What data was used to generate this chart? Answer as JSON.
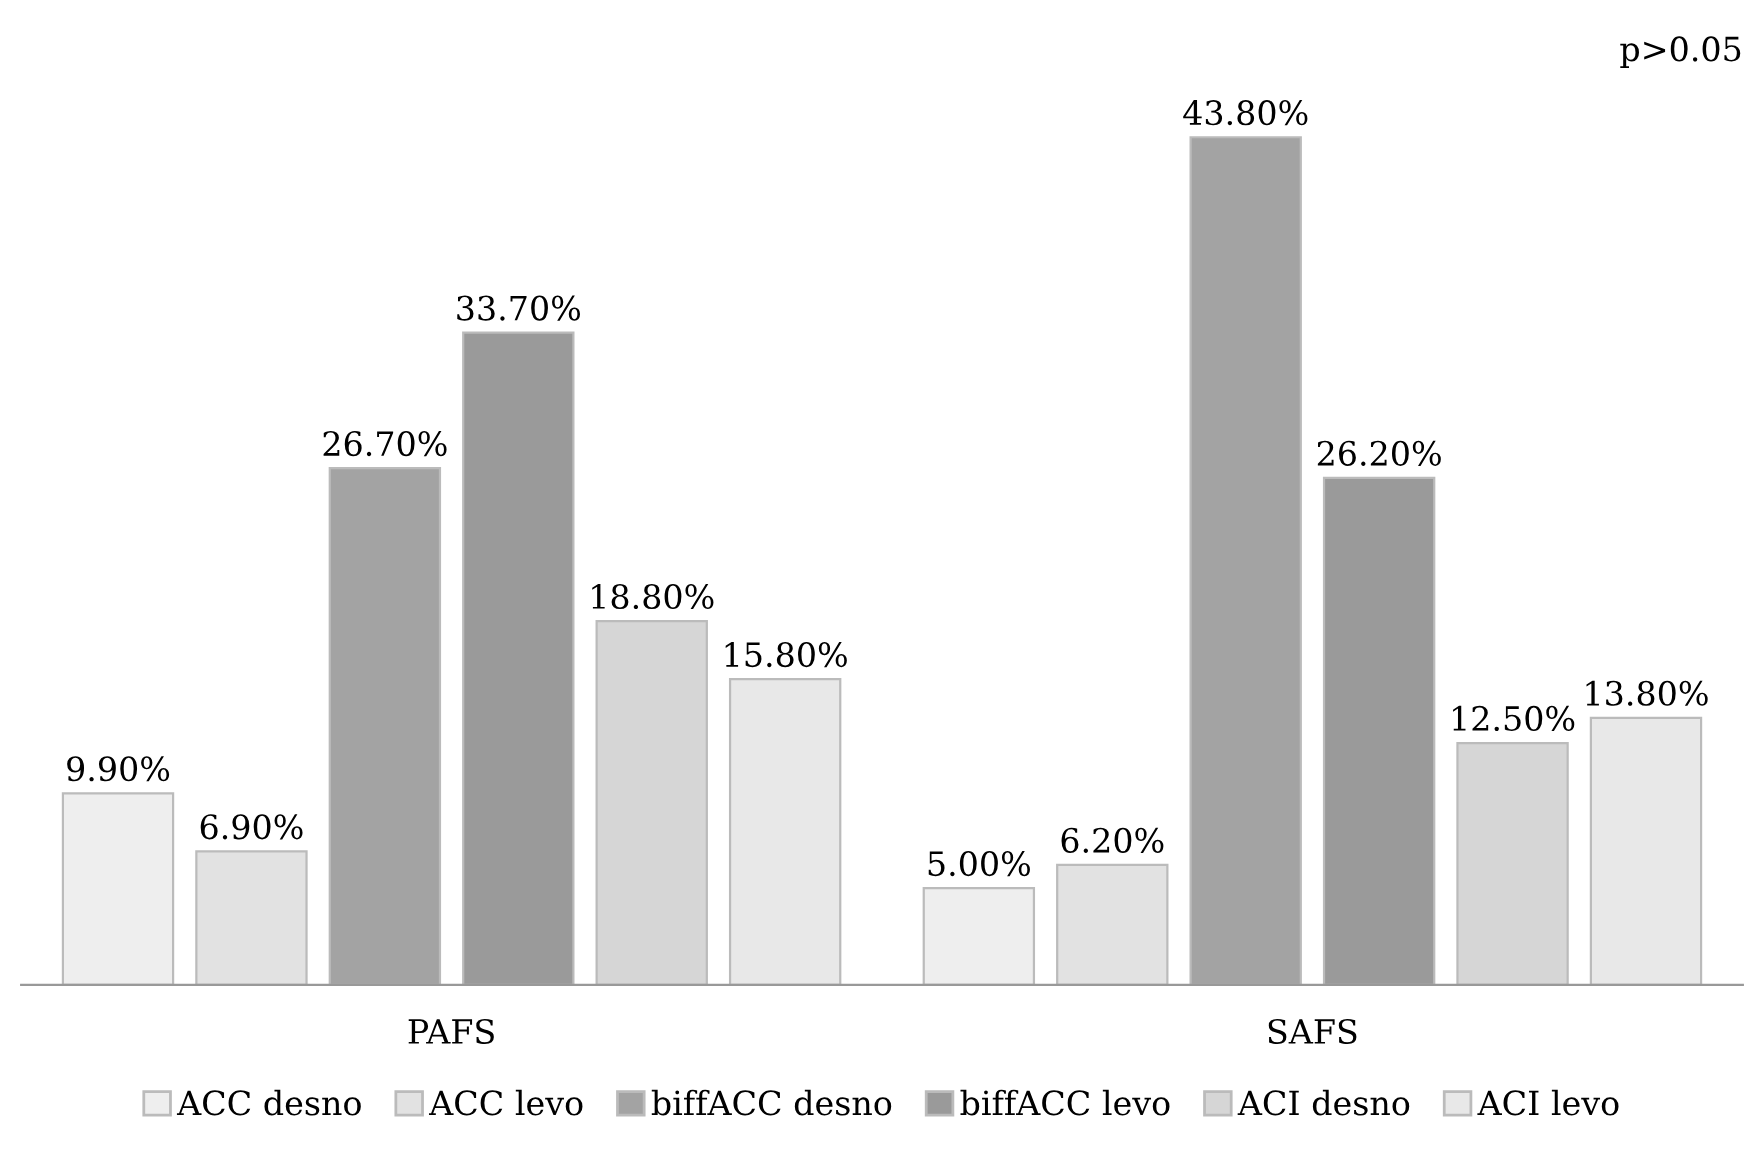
{
  "chart_data": {
    "type": "bar",
    "categories": [
      "PAFS",
      "SAFS"
    ],
    "series": [
      {
        "name": "ACC desno",
        "color": "#eeeeee",
        "values": [
          9.9,
          5.0
        ],
        "value_labels": [
          "9.90%",
          "5.00%"
        ]
      },
      {
        "name": "ACC levo",
        "color": "#e2e2e2",
        "values": [
          6.9,
          6.2
        ],
        "value_labels": [
          "6.90%",
          "6.20%"
        ]
      },
      {
        "name": "biffACC desno",
        "color": "#a3a3a3",
        "values": [
          26.7,
          43.8
        ],
        "value_labels": [
          "26.70%",
          "43.80%"
        ]
      },
      {
        "name": "biffACC levo",
        "color": "#9a9a9a",
        "values": [
          33.7,
          26.2
        ],
        "value_labels": [
          "33.70%",
          "26.20%"
        ]
      },
      {
        "name": "ACI desno",
        "color": "#d6d6d6",
        "values": [
          18.8,
          12.5
        ],
        "value_labels": [
          "18.80%",
          "12.50%"
        ]
      },
      {
        "name": "ACI levo",
        "color": "#e8e8e8",
        "values": [
          15.8,
          13.8
        ],
        "value_labels": [
          "15.80%",
          "13.80%"
        ]
      }
    ],
    "annotations": [
      "p>0.05"
    ],
    "legend": "bottom",
    "grid": false
  }
}
